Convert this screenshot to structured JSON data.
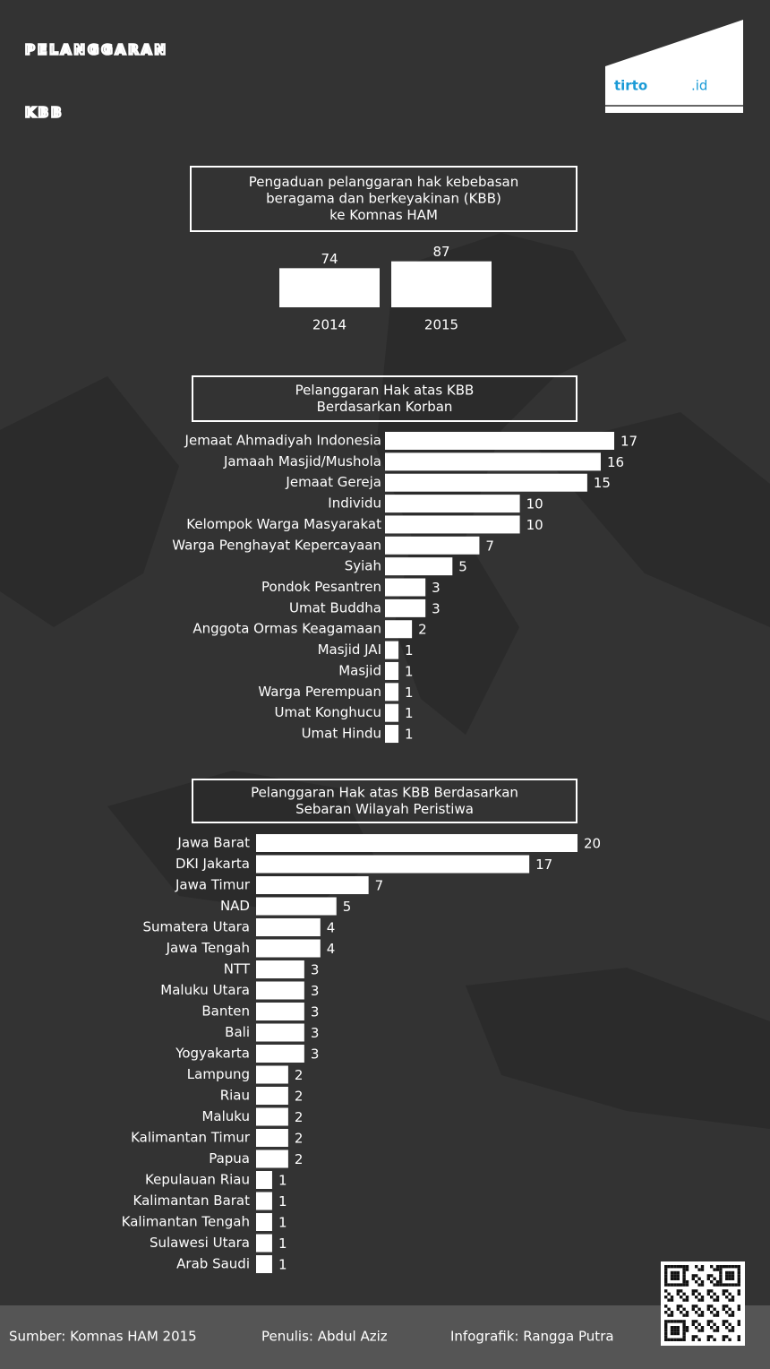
{
  "header": {
    "title_lines": [
      "PELANGGARAN",
      "KBB"
    ],
    "logo": {
      "name": "tirto",
      "suffix": ".id"
    }
  },
  "chart_data": [
    {
      "type": "bar",
      "title": [
        "Pengaduan pelanggaran hak kebebasan",
        "beragama dan  berkeyakinan (KBB)",
        "ke Komnas HAM"
      ],
      "categories": [
        "2014",
        "2015"
      ],
      "values": [
        74,
        87
      ],
      "color": "#ffffff"
    },
    {
      "type": "hbar",
      "title": [
        "Pelanggaran Hak atas KBB",
        "Berdasarkan Korban"
      ],
      "categories": [
        "Jemaat Ahmadiyah Indonesia",
        "Jamaah Masjid/Mushola",
        "Jemaat Gereja",
        "Individu",
        "Kelompok Warga Masyarakat",
        "Warga Penghayat Kepercayaan",
        "Syiah",
        "Pondok Pesantren",
        "Umat Buddha",
        "Anggota Ormas Keagamaan",
        "Masjid JAI",
        "Masjid",
        "Warga Perempuan",
        "Umat Konghucu",
        "Umat Hindu"
      ],
      "values": [
        17,
        16,
        15,
        10,
        10,
        7,
        5,
        3,
        3,
        2,
        1,
        1,
        1,
        1,
        1
      ],
      "color": "#ffffff"
    },
    {
      "type": "hbar",
      "title": [
        "Pelanggaran Hak atas KBB Berdasarkan",
        "Sebaran Wilayah Peristiwa"
      ],
      "categories": [
        "Jawa Barat",
        "DKI Jakarta",
        "Jawa Timur",
        "NAD",
        "Sumatera Utara",
        "Jawa Tengah",
        "NTT",
        "Maluku Utara",
        "Banten",
        "Bali",
        "Yogyakarta",
        "Lampung",
        "Riau",
        "Maluku",
        "Kalimantan Timur",
        "Papua",
        "Kepulauan Riau",
        "Kalimantan Barat",
        "Kalimantan Tengah",
        "Sulawesi Utara",
        "Arab Saudi"
      ],
      "values": [
        20,
        17,
        7,
        5,
        4,
        4,
        3,
        3,
        3,
        3,
        3,
        2,
        2,
        2,
        2,
        2,
        1,
        1,
        1,
        1,
        1
      ],
      "color": "#ffffff"
    }
  ],
  "footer": {
    "source": "Sumber: Komnas HAM 2015",
    "author": "Penulis: Abdul Aziz",
    "graphics": "Infografik: Rangga Putra"
  }
}
